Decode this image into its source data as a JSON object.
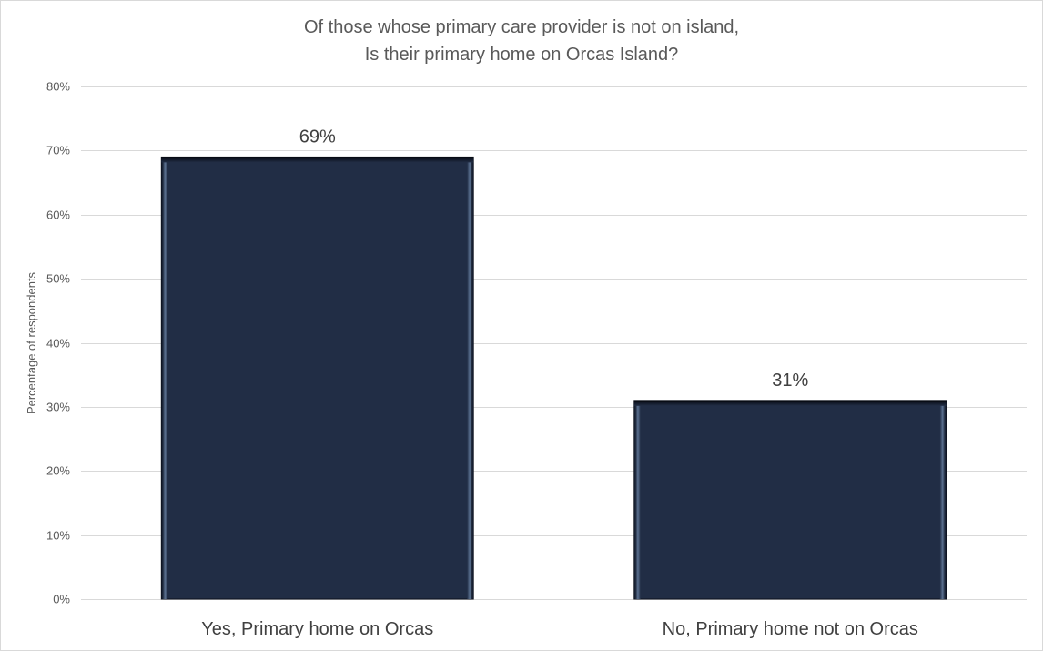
{
  "chart_data": {
    "type": "bar",
    "title_lines": [
      "Of those whose primary care provider is not on island,",
      "Is their primary home on Orcas Island?"
    ],
    "ylabel": "Percentage of respondents",
    "xlabel": "",
    "categories": [
      "Yes, Primary home on Orcas",
      "No, Primary home not on Orcas"
    ],
    "values": [
      69,
      31
    ],
    "data_labels": [
      "69%",
      "31%"
    ],
    "ylim": [
      0,
      80
    ],
    "yticks": [
      0,
      10,
      20,
      30,
      40,
      50,
      60,
      70,
      80
    ],
    "ytick_labels": [
      "0%",
      "10%",
      "20%",
      "30%",
      "40%",
      "50%",
      "60%",
      "70%",
      "80%"
    ],
    "grid": true,
    "legend": "none",
    "bar_color": "#212d45",
    "bar_edge_color": "#4a5f7e"
  }
}
